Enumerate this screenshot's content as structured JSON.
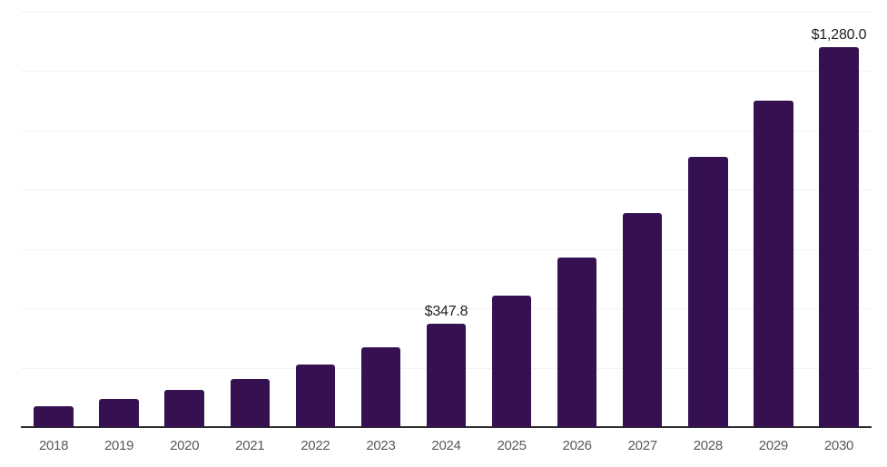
{
  "chart_data": {
    "type": "bar",
    "title": "",
    "xlabel": "",
    "ylabel": "",
    "categories": [
      "2018",
      "2019",
      "2020",
      "2021",
      "2022",
      "2023",
      "2024",
      "2025",
      "2026",
      "2027",
      "2028",
      "2029",
      "2030"
    ],
    "values": [
      70,
      95,
      125,
      163,
      210,
      270,
      347.8,
      444,
      570,
      721,
      911,
      1100,
      1280
    ],
    "data_labels": [
      "",
      "",
      "",
      "",
      "",
      "",
      "$347.8",
      "",
      "",
      "",
      "",
      "",
      "$1,280.0"
    ],
    "ylim": [
      0,
      1400
    ],
    "gridline_step": 200,
    "grid": "horizontal",
    "legend_position": "none",
    "colors": {
      "bar": "#351151",
      "gridline": "#f2f2f2",
      "axis_line": "#2b2b2b",
      "tick_label": "#595959",
      "data_label": "#1f1f1f",
      "background": "#ffffff"
    }
  }
}
